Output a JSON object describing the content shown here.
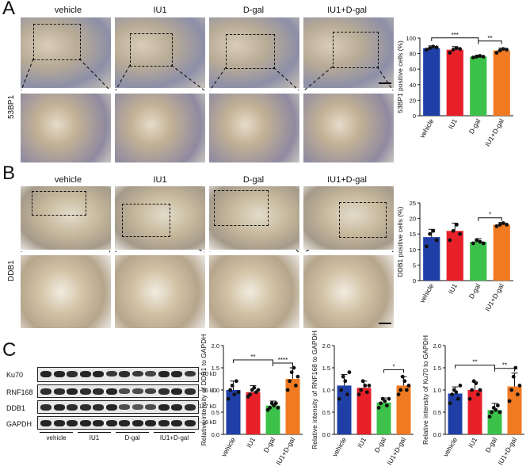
{
  "panels": {
    "A": {
      "letter": "A",
      "row_label": "53BP1",
      "groups": [
        "vehicle",
        "IU1",
        "D-gal",
        "IU1+D-gal"
      ]
    },
    "B": {
      "letter": "B",
      "row_label": "DDB1",
      "groups": [
        "vehicle",
        "IU1",
        "D-gal",
        "IU1+D-gal"
      ]
    },
    "C": {
      "letter": "C",
      "proteins": [
        {
          "name": "Ku70",
          "kd": "~70 kD"
        },
        {
          "name": "RNF168",
          "kd": "~65 kD"
        },
        {
          "name": "DDB1",
          "kd": "127 kD"
        },
        {
          "name": "GAPDH",
          "kd": "~36 kD"
        }
      ],
      "lanes": [
        "vehicle",
        "IU1",
        "D-gal",
        "IU1+D-gal"
      ]
    }
  },
  "colors": {
    "vehicle": "#1f3fa6",
    "IU1": "#e8202a",
    "D-gal": "#3cc24a",
    "IU1+D-gal": "#f07a22"
  },
  "chart_data": [
    {
      "type": "bar",
      "categories": [
        "vehicle",
        "IU1",
        "D-gal",
        "IU1+D-gal"
      ],
      "values": [
        87,
        85,
        76,
        84
      ],
      "errors": [
        3,
        4,
        2,
        3
      ],
      "points": [
        [
          85,
          87,
          89,
          88
        ],
        [
          81,
          85,
          87,
          86
        ],
        [
          75,
          76,
          77,
          76
        ],
        [
          81,
          84,
          86,
          85
        ]
      ],
      "ylabel": "53BP1 positive cells (%)",
      "ylim": [
        0,
        100
      ],
      "yticks": [
        "0",
        "20",
        "40",
        "60",
        "80",
        "100"
      ],
      "yticks_values": [
        0,
        20,
        40,
        60,
        80,
        100
      ],
      "significance": [
        {
          "from": 0,
          "to": 2,
          "label": "***"
        },
        {
          "from": 2,
          "to": 3,
          "label": "**"
        }
      ]
    },
    {
      "type": "bar",
      "categories": [
        "vehicle",
        "IU1",
        "D-gal",
        "IU1+D-gal"
      ],
      "values": [
        14,
        16,
        12.5,
        18
      ],
      "errors": [
        2.5,
        2.5,
        1,
        0.7
      ],
      "points": [
        [
          11,
          15,
          16,
          13
        ],
        [
          13,
          16,
          18,
          15
        ],
        [
          12,
          13,
          12.5,
          12
        ],
        [
          17.5,
          18,
          18.5,
          18
        ]
      ],
      "ylabel": "DDB1 positive cells (%)",
      "ylim": [
        0,
        25
      ],
      "yticks": [
        "0",
        "5",
        "10",
        "15",
        "20",
        "25"
      ],
      "yticks_values": [
        0,
        5,
        10,
        15,
        20,
        25
      ],
      "significance": [
        {
          "from": 2,
          "to": 3,
          "label": "*"
        }
      ]
    },
    {
      "type": "bar",
      "categories": [
        "vehicle",
        "IU1",
        "D-gal",
        "IU1+D-gal"
      ],
      "values": [
        1.0,
        0.95,
        0.65,
        1.25
      ],
      "errors": [
        0.2,
        0.15,
        0.1,
        0.25
      ],
      "points": [
        [
          0.8,
          1.0,
          1.1,
          0.9,
          1.2,
          0.95
        ],
        [
          0.85,
          0.9,
          1.0,
          1.05,
          0.95,
          1.0
        ],
        [
          0.55,
          0.6,
          0.7,
          0.65,
          0.7,
          0.6
        ],
        [
          1.0,
          1.2,
          1.4,
          1.5,
          1.1,
          1.3
        ]
      ],
      "ylabel": "Relative intensity of DDB1 to GAPDH",
      "ylim": [
        0,
        2.0
      ],
      "yticks": [
        "0.0",
        "0.5",
        "1.0",
        "1.5",
        "2.0"
      ],
      "yticks_values": [
        0,
        0.5,
        1.0,
        1.5,
        2.0
      ],
      "significance": [
        {
          "from": 0,
          "to": 2,
          "label": "**"
        },
        {
          "from": 2,
          "to": 3,
          "label": "****"
        }
      ]
    },
    {
      "type": "bar",
      "categories": [
        "vehicle",
        "IU1",
        "D-gal",
        "IU1+D-gal"
      ],
      "values": [
        1.1,
        1.05,
        0.72,
        1.1
      ],
      "errors": [
        0.25,
        0.15,
        0.1,
        0.2
      ],
      "points": [
        [
          0.8,
          1.0,
          1.3,
          1.2,
          0.9,
          1.4
        ],
        [
          0.9,
          1.0,
          1.2,
          1.1,
          0.95,
          1.1
        ],
        [
          0.6,
          0.7,
          0.8,
          0.75,
          0.65,
          0.8
        ],
        [
          0.9,
          1.0,
          1.3,
          1.2,
          1.0,
          1.1
        ]
      ],
      "ylabel": "Relative intensity of RNF168 to GAPDH",
      "ylim": [
        0,
        2.0
      ],
      "yticks": [
        "0.0",
        "0.5",
        "1.0",
        "1.5",
        "2.0"
      ],
      "yticks_values": [
        0,
        0.5,
        1.0,
        1.5,
        2.0
      ],
      "significance": [
        {
          "from": 2,
          "to": 3,
          "label": "*"
        }
      ]
    },
    {
      "type": "bar",
      "categories": [
        "vehicle",
        "IU1",
        "D-gal",
        "IU1+D-gal"
      ],
      "values": [
        0.92,
        1.0,
        0.55,
        1.08
      ],
      "errors": [
        0.15,
        0.18,
        0.15,
        0.3
      ],
      "points": [
        [
          0.7,
          0.9,
          1.0,
          0.95,
          0.8,
          1.1
        ],
        [
          0.8,
          1.0,
          1.2,
          1.15,
          0.9,
          1.0
        ],
        [
          0.4,
          0.5,
          0.6,
          0.55,
          0.65,
          0.5
        ],
        [
          0.75,
          1.0,
          1.3,
          1.5,
          0.9,
          1.1
        ]
      ],
      "ylabel": "Relative intensity of Ku70 to GAPDH",
      "ylim": [
        0,
        2.0
      ],
      "yticks": [
        "0.0",
        "0.5",
        "1.0",
        "1.5",
        "2.0"
      ],
      "yticks_values": [
        0,
        0.5,
        1.0,
        1.5,
        2.0
      ],
      "significance": [
        {
          "from": 0,
          "to": 2,
          "label": "**"
        },
        {
          "from": 2,
          "to": 3,
          "label": "**"
        }
      ]
    }
  ]
}
